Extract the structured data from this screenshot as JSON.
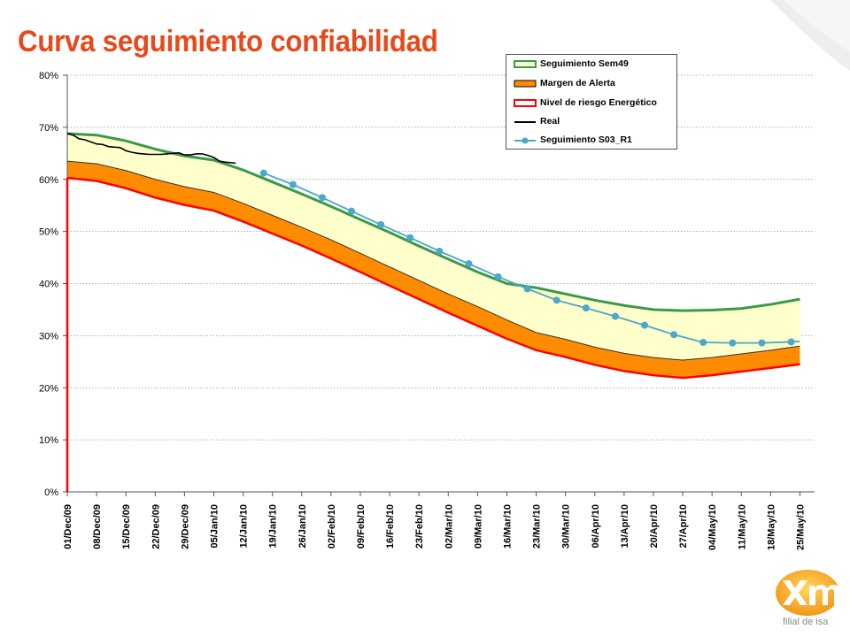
{
  "page": {
    "title": "Curva seguimiento confiabilidad",
    "logo_subtext_mark": "",
    "logo_subtext": "filial de isa"
  },
  "colors": {
    "title": "#e8481a",
    "seguimiento": "#3a9a4a",
    "margen": "#ff8c00",
    "margen_fill_upper": "#ffffcc",
    "riesgo": "#ff0000",
    "real": "#000000",
    "s03": "#4aa8c8"
  },
  "chart_data": {
    "type": "line",
    "xlabels": [
      "01/Dec/09",
      "08/Dec/09",
      "15/Dec/09",
      "22/Dec/09",
      "29/Dec/09",
      "05/Jan/10",
      "12/Jan/10",
      "19/Jan/10",
      "26/Jan/10",
      "02/Feb/10",
      "09/Feb/10",
      "16/Feb/10",
      "23/Feb/10",
      "02/Mar/10",
      "09/Mar/10",
      "16/Mar/10",
      "23/Mar/10",
      "30/Mar/10",
      "06/Apr/10",
      "13/Apr/10",
      "20/Apr/10",
      "27/Apr/10",
      "04/May/10",
      "11/May/10",
      "18/May/10",
      "25/May/10"
    ],
    "ytick_labels": [
      "0%",
      "10%",
      "20%",
      "30%",
      "40%",
      "50%",
      "60%",
      "70%",
      "80%"
    ],
    "ylim": [
      0,
      80
    ],
    "grid": "horizontal dotted",
    "legend_position": "top-right",
    "series": [
      {
        "name": "Seguimiento Sem49",
        "key": "seguimiento",
        "values": [
          68.8,
          68.5,
          67.4,
          65.8,
          64.5,
          63.7,
          61.8,
          59.5,
          57.2,
          54.8,
          52.3,
          49.8,
          47.2,
          44.7,
          42.2,
          40.0,
          39.2,
          38.0,
          36.8,
          35.8,
          35.0,
          34.8,
          34.9,
          35.2,
          36.0,
          37.0
        ]
      },
      {
        "name": "Margen de Alerta",
        "key": "margen",
        "values": [
          63.5,
          63.0,
          61.7,
          60.0,
          58.6,
          57.5,
          55.4,
          53.1,
          50.8,
          48.4,
          45.8,
          43.2,
          40.6,
          38.0,
          35.6,
          33.0,
          30.6,
          29.3,
          27.8,
          26.6,
          25.8,
          25.3,
          25.8,
          26.5,
          27.2,
          28.0
        ]
      },
      {
        "name": "Nivel de riesgo Energético",
        "key": "riesgo",
        "values": [
          60.3,
          59.7,
          58.3,
          56.5,
          55.1,
          54.0,
          51.9,
          49.6,
          47.3,
          44.8,
          42.2,
          39.6,
          37.0,
          34.4,
          31.9,
          29.4,
          27.2,
          25.9,
          24.4,
          23.2,
          22.4,
          21.9,
          22.4,
          23.1,
          23.8,
          24.5
        ]
      },
      {
        "name": "Real",
        "key": "real",
        "points": [
          [
            0,
            68.8
          ],
          [
            0.2,
            68.5
          ],
          [
            0.4,
            67.8
          ],
          [
            0.6,
            67.6
          ],
          [
            0.8,
            67.2
          ],
          [
            1.0,
            66.8
          ],
          [
            1.2,
            66.7
          ],
          [
            1.4,
            66.3
          ],
          [
            1.6,
            66.2
          ],
          [
            1.8,
            66.1
          ],
          [
            2.0,
            65.5
          ],
          [
            2.2,
            65.2
          ],
          [
            2.4,
            65.0
          ],
          [
            2.6,
            64.9
          ],
          [
            2.8,
            64.8
          ],
          [
            3.0,
            64.8
          ],
          [
            3.2,
            64.8
          ],
          [
            3.4,
            64.9
          ],
          [
            3.6,
            65.0
          ],
          [
            3.8,
            65.1
          ],
          [
            4.0,
            64.7
          ],
          [
            4.2,
            64.7
          ],
          [
            4.4,
            64.9
          ],
          [
            4.6,
            64.9
          ],
          [
            4.8,
            64.6
          ],
          [
            5.0,
            64.2
          ],
          [
            5.2,
            63.5
          ],
          [
            5.4,
            63.3
          ],
          [
            5.6,
            63.2
          ],
          [
            5.75,
            63.1
          ]
        ]
      },
      {
        "name": "Seguimiento S03_R1",
        "key": "s03",
        "points": [
          [
            6.7,
            61.2
          ],
          [
            7.7,
            59.0
          ],
          [
            8.7,
            56.5
          ],
          [
            9.7,
            53.9
          ],
          [
            10.7,
            51.3
          ],
          [
            11.7,
            48.8
          ],
          [
            12.7,
            46.2
          ],
          [
            13.7,
            43.8
          ],
          [
            14.7,
            41.3
          ],
          [
            15.7,
            39.0
          ],
          [
            16.7,
            36.8
          ],
          [
            17.7,
            35.3
          ],
          [
            18.7,
            33.7
          ],
          [
            19.7,
            32.0
          ],
          [
            20.7,
            30.2
          ],
          [
            21.7,
            28.7
          ],
          [
            22.7,
            28.6
          ],
          [
            23.7,
            28.6
          ],
          [
            24.7,
            28.8
          ],
          [
            25.0,
            28.9
          ]
        ]
      }
    ]
  }
}
